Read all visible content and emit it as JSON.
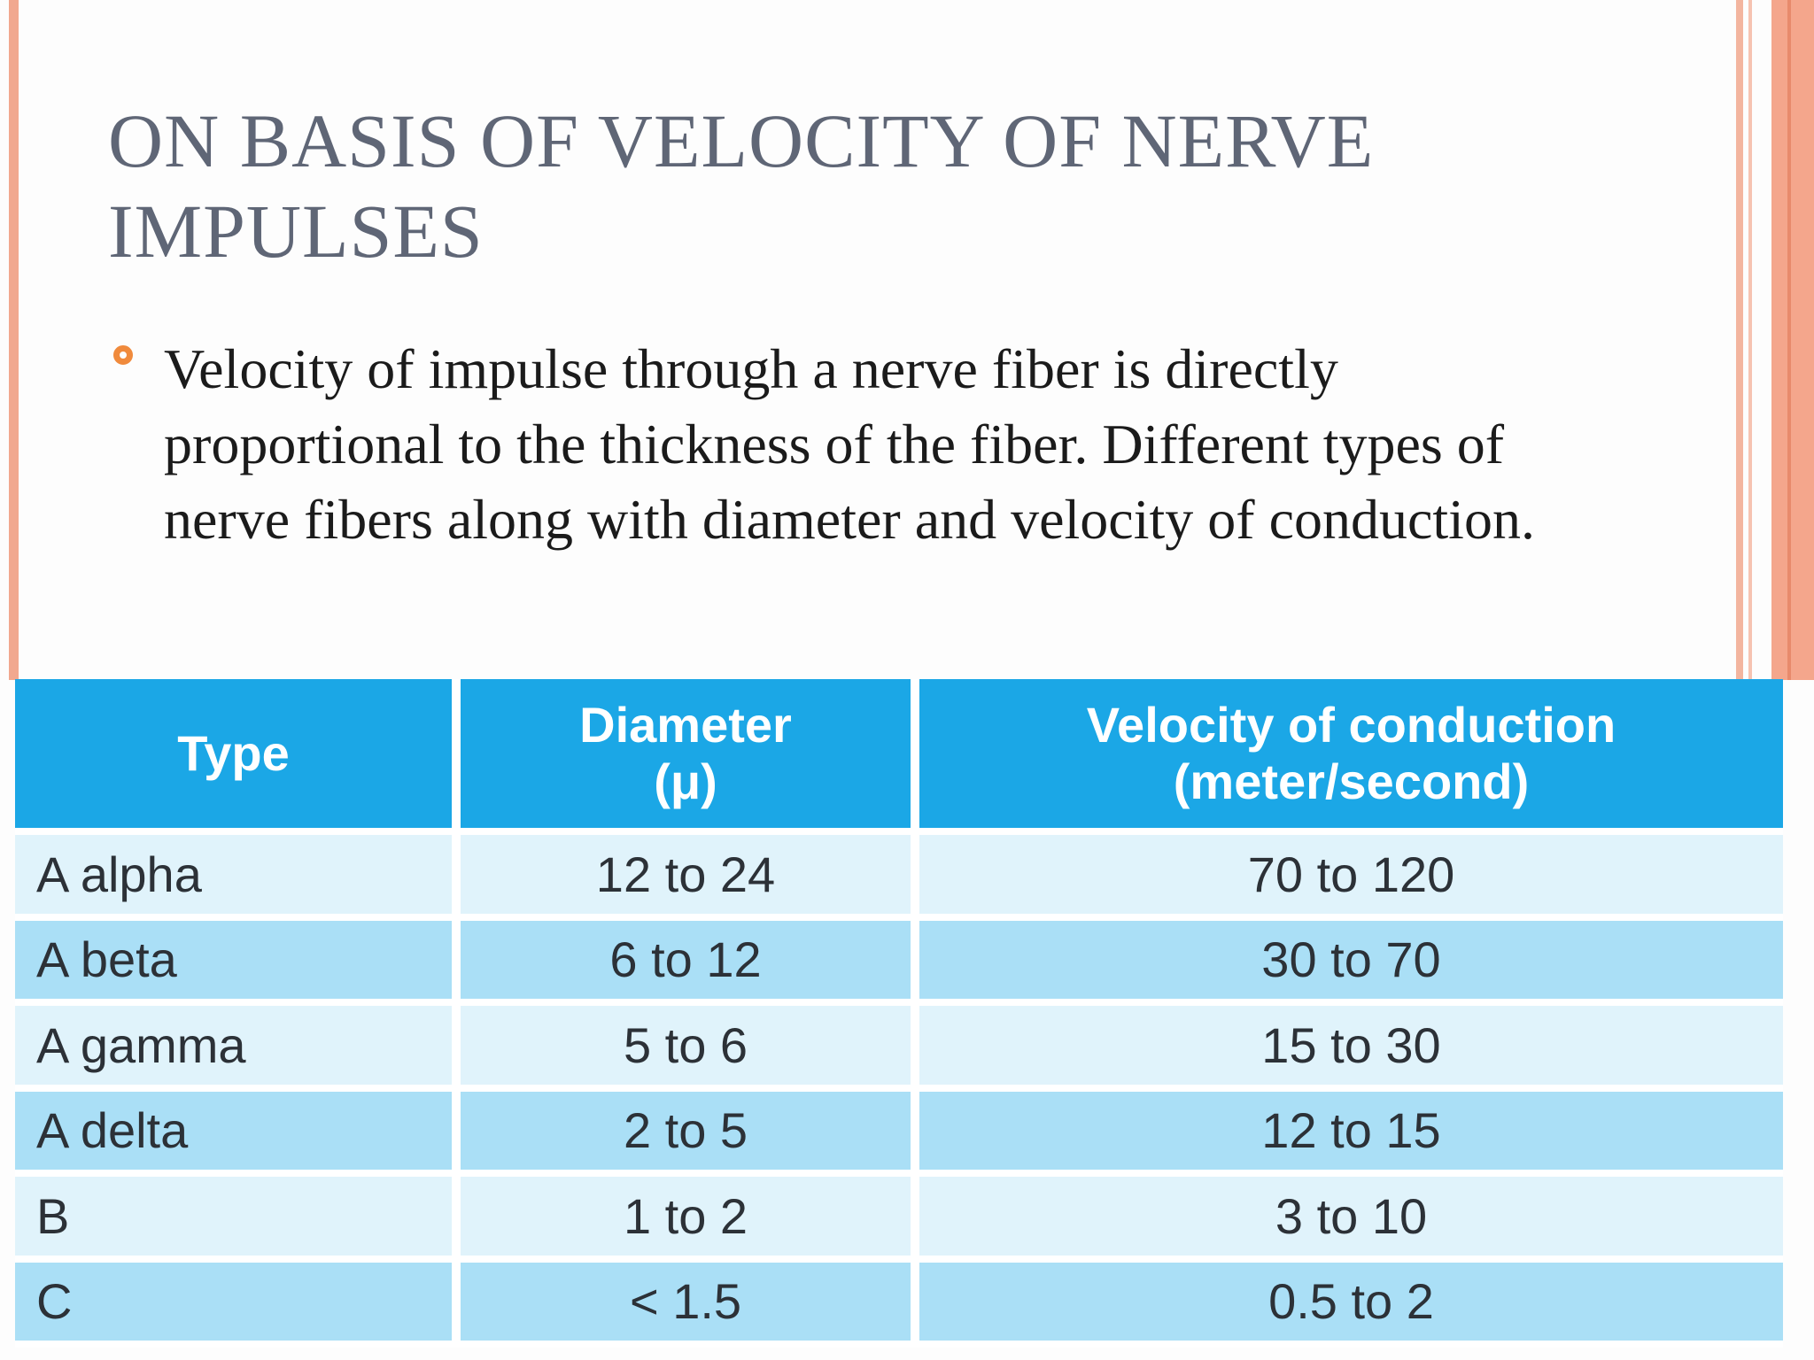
{
  "slide": {
    "title": "On basis of velocity of nerve impulses",
    "bullet": "Velocity of impulse through a nerve fiber is directly proportional to the thickness of the fiber. Different types of nerve fibers along with diameter and velocity of conduction."
  },
  "table": {
    "headers": {
      "type": "Type",
      "diameter_line1": "Diameter",
      "diameter_line2": "(μ)",
      "velocity_line1": "Velocity of conduction",
      "velocity_line2": "(meter/second)"
    },
    "rows": [
      {
        "type": "A alpha",
        "diameter": "12 to 24",
        "velocity": "70 to 120"
      },
      {
        "type": "A beta",
        "diameter": "6  to 12",
        "velocity": "30 to 70"
      },
      {
        "type": "A gamma",
        "diameter": "5 to 6",
        "velocity": "15  to 30"
      },
      {
        "type": "A delta",
        "diameter": "2 to 5",
        "velocity": "12  to 15"
      },
      {
        "type": "B",
        "diameter": "1 to 2",
        "velocity": "3    to 10"
      },
      {
        "type": "C",
        "diameter": "< 1.5",
        "velocity": "0.5 to 2"
      }
    ]
  },
  "colors": {
    "accent_stripe": "#f1a88f",
    "bullet": "#f08a3c",
    "header_bg": "#1ba7e6",
    "row_light": "#e0f3fb",
    "row_dark": "#aadff6",
    "title_text": "#5f6676"
  }
}
